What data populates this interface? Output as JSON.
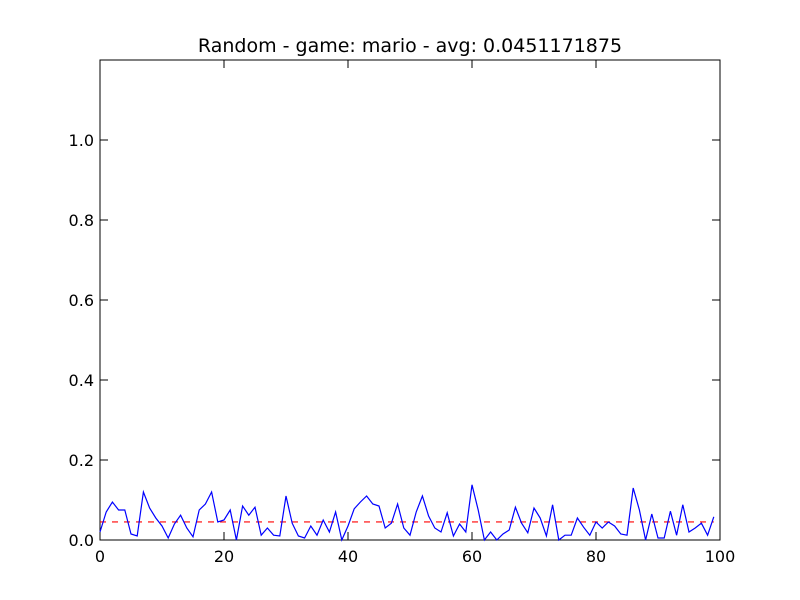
{
  "chart_data": {
    "type": "line",
    "title": "Random - game: mario - avg: 0.0451171875",
    "xlabel": "",
    "ylabel": "",
    "xlim": [
      0,
      100
    ],
    "ylim": [
      0,
      1.2
    ],
    "grid": false,
    "x_ticks": [
      0,
      20,
      40,
      60,
      80,
      100
    ],
    "x_tick_labels": [
      "0",
      "20",
      "40",
      "60",
      "80",
      "100"
    ],
    "y_ticks": [
      0.0,
      0.2,
      0.4,
      0.6,
      0.8,
      1.0
    ],
    "y_tick_labels": [
      "0.0",
      "0.2",
      "0.4",
      "0.6",
      "0.8",
      "1.0"
    ],
    "series": [
      {
        "color": "#0000ff",
        "style": "solid",
        "x": [
          0,
          1,
          2,
          3,
          4,
          5,
          6,
          7,
          8,
          9,
          10,
          11,
          12,
          13,
          14,
          15,
          16,
          17,
          18,
          19,
          20,
          21,
          22,
          23,
          24,
          25,
          26,
          27,
          28,
          29,
          30,
          31,
          32,
          33,
          34,
          35,
          36,
          37,
          38,
          39,
          40,
          41,
          42,
          43,
          44,
          45,
          46,
          47,
          48,
          49,
          50,
          51,
          52,
          53,
          54,
          55,
          56,
          57,
          58,
          59,
          60,
          61,
          62,
          63,
          64,
          65,
          66,
          67,
          68,
          69,
          70,
          71,
          72,
          73,
          74,
          75,
          76,
          77,
          78,
          79,
          80,
          81,
          82,
          83,
          84,
          85,
          86,
          87,
          88,
          89,
          90,
          91,
          92,
          93,
          94,
          95,
          96,
          97,
          98,
          99
        ],
        "values": [
          0.02,
          0.07,
          0.095,
          0.075,
          0.075,
          0.015,
          0.01,
          0.12,
          0.08,
          0.055,
          0.035,
          0.005,
          0.04,
          0.062,
          0.03,
          0.008,
          0.075,
          0.09,
          0.12,
          0.045,
          0.05,
          0.075,
          0.0,
          0.085,
          0.062,
          0.082,
          0.012,
          0.03,
          0.012,
          0.01,
          0.11,
          0.042,
          0.01,
          0.005,
          0.035,
          0.012,
          0.05,
          0.02,
          0.07,
          0.0,
          0.035,
          0.078,
          0.095,
          0.11,
          0.09,
          0.085,
          0.03,
          0.042,
          0.09,
          0.03,
          0.012,
          0.07,
          0.11,
          0.06,
          0.03,
          0.02,
          0.068,
          0.01,
          0.04,
          0.02,
          0.138,
          0.075,
          0.0,
          0.02,
          0.0,
          0.015,
          0.025,
          0.082,
          0.042,
          0.018,
          0.08,
          0.055,
          0.01,
          0.088,
          0.0,
          0.012,
          0.012,
          0.055,
          0.032,
          0.012,
          0.045,
          0.03,
          0.045,
          0.035,
          0.015,
          0.012,
          0.13,
          0.075,
          0.0,
          0.065,
          0.005,
          0.005,
          0.072,
          0.012,
          0.088,
          0.02,
          0.03,
          0.042,
          0.012,
          0.058
        ]
      },
      {
        "color": "#ff0000",
        "style": "dashed",
        "x": [
          0,
          99
        ],
        "values": [
          0.0451171875,
          0.0451171875
        ]
      }
    ]
  }
}
